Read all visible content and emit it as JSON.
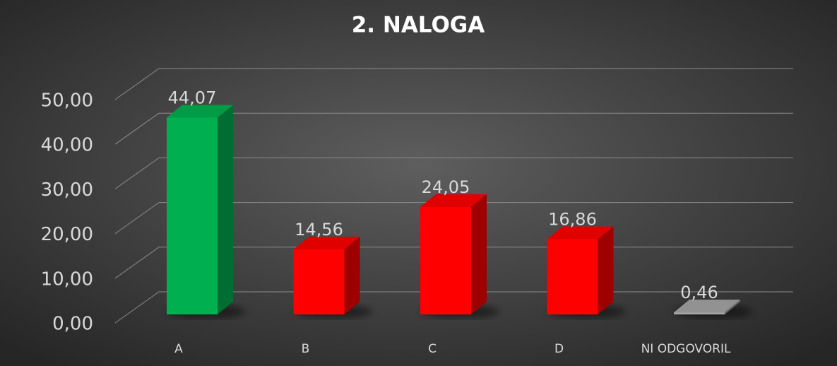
{
  "chart_data": {
    "type": "bar3d",
    "title": "2. NALOGA",
    "categories": [
      "A",
      "B",
      "C",
      "D",
      "NI ODGOVORIL"
    ],
    "values": [
      44.07,
      14.56,
      24.05,
      16.86,
      0.46
    ],
    "value_labels": [
      "44,07",
      "14,56",
      "24,05",
      "16,86",
      "0,46"
    ],
    "colors": [
      "#00b050",
      "#ff0000",
      "#ff0000",
      "#ff0000",
      "#a6a6a6"
    ],
    "ylim": [
      0,
      50
    ],
    "yticks": [
      {
        "value": 0,
        "label": "0,00"
      },
      {
        "value": 10,
        "label": "10,00"
      },
      {
        "value": 20,
        "label": "20,00"
      },
      {
        "value": 30,
        "label": "30,00"
      },
      {
        "value": 40,
        "label": "40,00"
      },
      {
        "value": 50,
        "label": "50,00"
      }
    ],
    "grid": true
  }
}
